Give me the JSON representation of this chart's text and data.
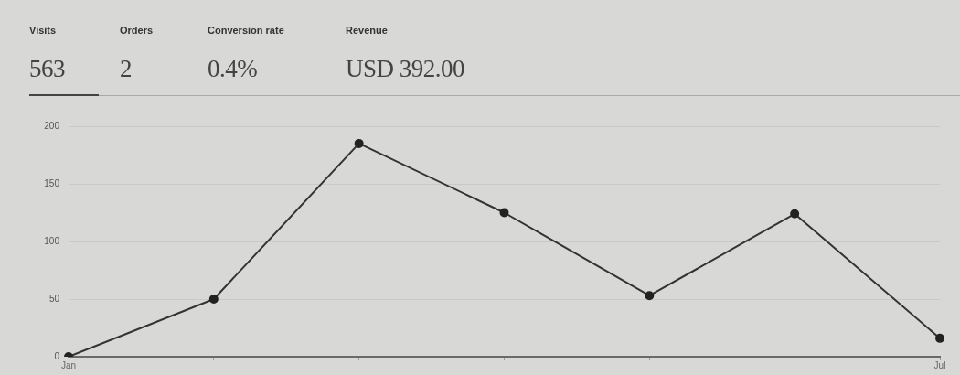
{
  "chart_data": {
    "type": "line",
    "categories": [
      "Jan",
      null,
      null,
      null,
      null,
      null,
      "Jul"
    ],
    "values": [
      0,
      50,
      185,
      125,
      53,
      124,
      16
    ],
    "color": "#333333",
    "ylim": [
      0,
      200
    ],
    "yticks": [
      0,
      50,
      100,
      150,
      200
    ],
    "grid": "y",
    "marker": "circle",
    "line_style": "solid",
    "annotations": [
      "Visits",
      "563",
      "Orders",
      "2",
      "Conversion rate",
      "0.4%",
      "Revenue",
      "USD 392.00"
    ]
  }
}
